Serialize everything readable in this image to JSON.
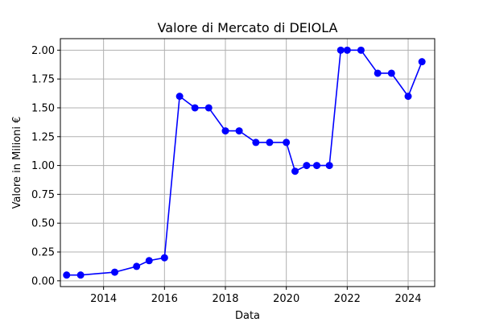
{
  "chart_data": {
    "type": "line",
    "title": "Valore di Mercato di DEIOLA",
    "xlabel": "Data",
    "ylabel": "Valore in Milioni €",
    "x_ticks": [
      "2014",
      "2016",
      "2018",
      "2020",
      "2022",
      "2024"
    ],
    "y_ticks": [
      "0.00",
      "0.25",
      "0.50",
      "0.75",
      "1.00",
      "1.25",
      "1.50",
      "1.75",
      "2.00"
    ],
    "xlim": [
      "2012-08-01",
      "2024-11-15"
    ],
    "ylim": [
      -0.05,
      2.1
    ],
    "grid": true,
    "series": [
      {
        "color": "#0000ff",
        "marker": "circle",
        "points": [
          {
            "x": "2012-10-15",
            "y": 0.05
          },
          {
            "x": "2013-04-01",
            "y": 0.05
          },
          {
            "x": "2014-05-15",
            "y": 0.075
          },
          {
            "x": "2015-02-01",
            "y": 0.125
          },
          {
            "x": "2015-07-01",
            "y": 0.175
          },
          {
            "x": "2016-01-01",
            "y": 0.2
          },
          {
            "x": "2016-07-01",
            "y": 1.6
          },
          {
            "x": "2017-01-01",
            "y": 1.5
          },
          {
            "x": "2017-06-15",
            "y": 1.5
          },
          {
            "x": "2018-01-01",
            "y": 1.3
          },
          {
            "x": "2018-06-15",
            "y": 1.3
          },
          {
            "x": "2019-01-01",
            "y": 1.2
          },
          {
            "x": "2019-06-15",
            "y": 1.2
          },
          {
            "x": "2020-01-01",
            "y": 1.2
          },
          {
            "x": "2020-04-15",
            "y": 0.95
          },
          {
            "x": "2020-09-01",
            "y": 1.0
          },
          {
            "x": "2021-01-01",
            "y": 1.0
          },
          {
            "x": "2021-06-01",
            "y": 1.0
          },
          {
            "x": "2021-10-15",
            "y": 2.0
          },
          {
            "x": "2022-01-01",
            "y": 2.0
          },
          {
            "x": "2022-06-15",
            "y": 2.0
          },
          {
            "x": "2023-01-01",
            "y": 1.8
          },
          {
            "x": "2023-06-15",
            "y": 1.8
          },
          {
            "x": "2024-01-01",
            "y": 1.6
          },
          {
            "x": "2024-06-15",
            "y": 1.9
          }
        ]
      }
    ]
  }
}
